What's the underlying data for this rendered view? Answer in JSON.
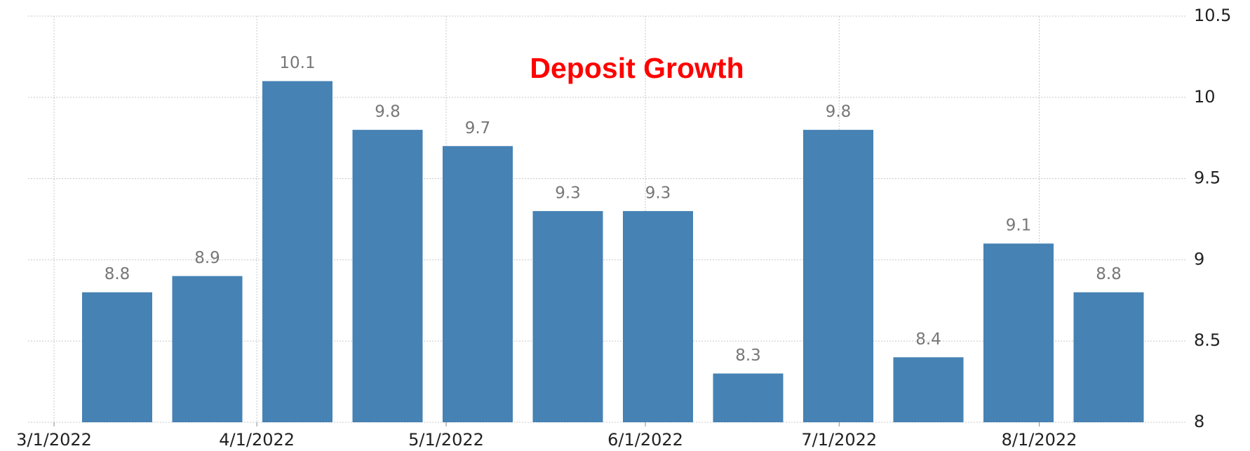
{
  "chart_data": {
    "type": "bar",
    "title": "Deposit Growth",
    "categories": [
      null,
      null,
      null,
      null,
      null,
      null,
      null,
      null,
      null,
      null,
      null,
      null
    ],
    "values": [
      8.8,
      8.9,
      10.1,
      9.8,
      9.7,
      9.3,
      9.3,
      8.3,
      9.8,
      8.4,
      9.1,
      8.8
    ],
    "color": "#4682b4",
    "xtick_labels": [
      "3/1/2022",
      "4/1/2022",
      "5/1/2022",
      "6/1/2022",
      "7/1/2022",
      "8/1/2022"
    ],
    "ylim": [
      8,
      10.5
    ],
    "yticks": [
      8,
      8.5,
      9,
      9.5,
      10,
      10.5
    ],
    "grid": true
  }
}
